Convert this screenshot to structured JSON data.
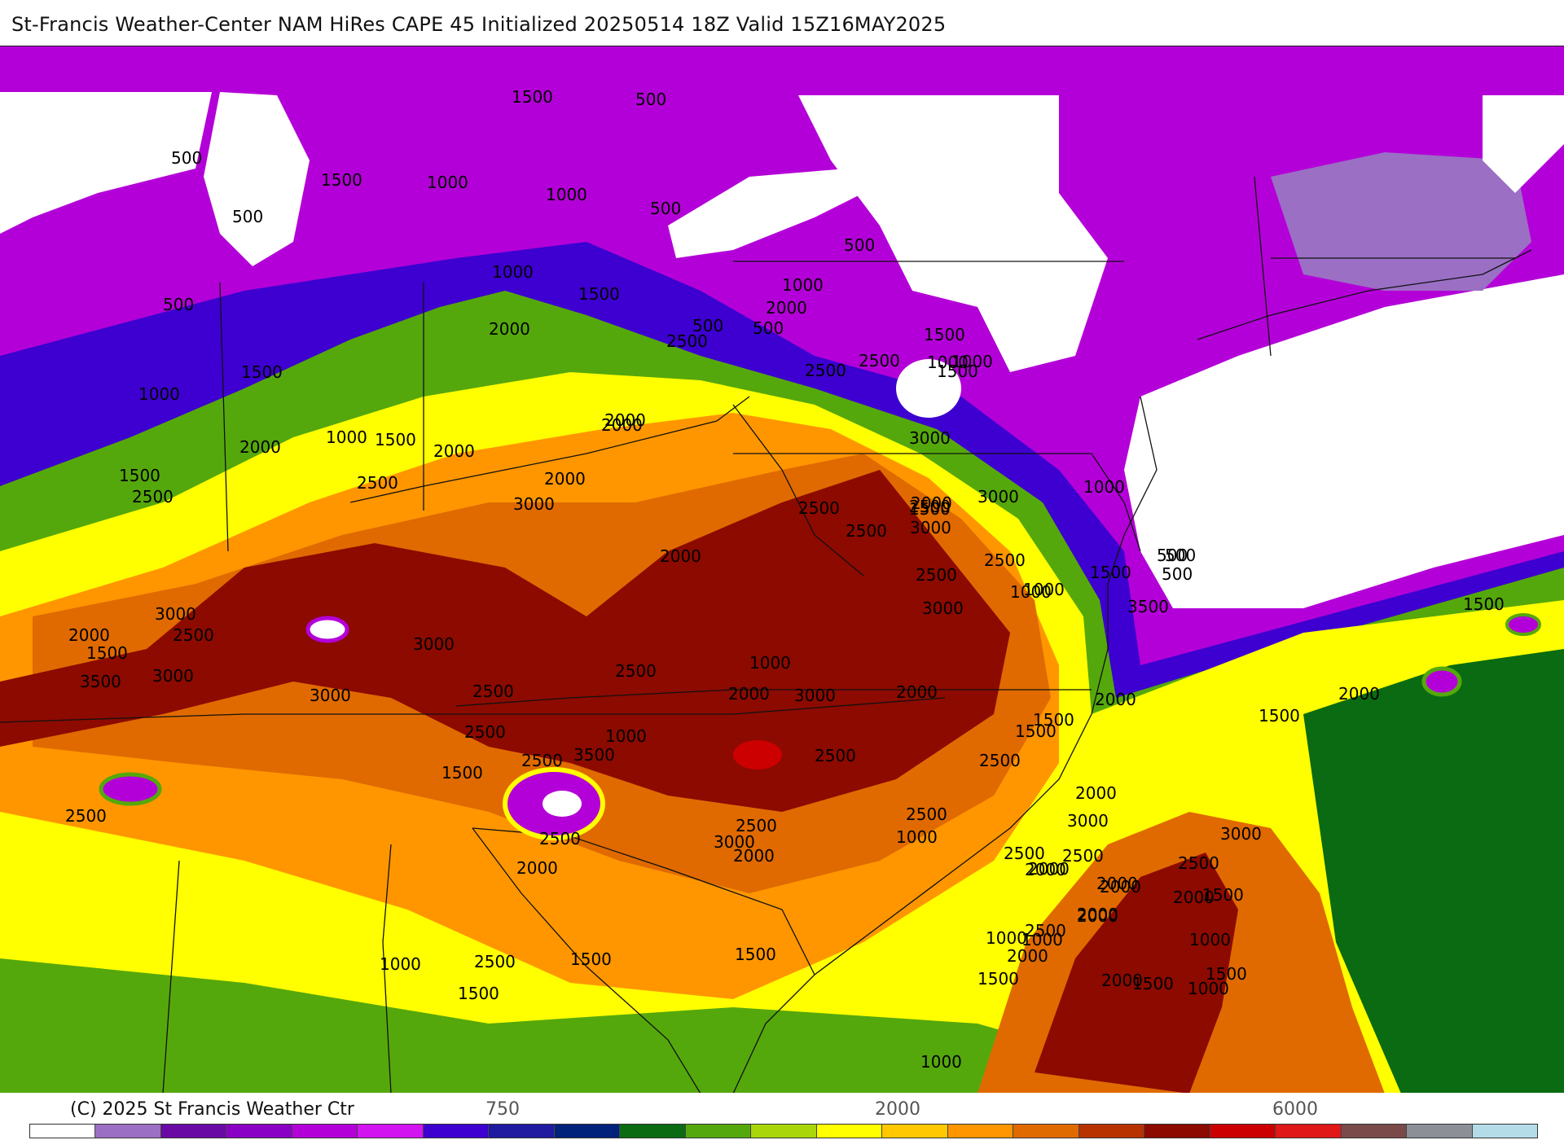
{
  "title": "St-Francis Weather-Center NAM HiRes CAPE  45 Initialized 20250514 18Z Valid 15Z16MAY2025",
  "copyright": "(C) 2025 St Francis Weather Ctr",
  "colorbar": {
    "tick_labels": [
      "750",
      "2000",
      "6000"
    ],
    "colors": [
      "#ffffff",
      "#9b6fc4",
      "#6a0aa5",
      "#8a00c4",
      "#b400d8",
      "#d214f0",
      "#3d00d0",
      "#1f1aa0",
      "#00227a",
      "#0a6b12",
      "#55a80c",
      "#a8d60a",
      "#ffff00",
      "#ffc800",
      "#ff9600",
      "#e06a00",
      "#b83200",
      "#8c0a00",
      "#cc0000",
      "#e01818",
      "#7a4a4a",
      "#8c9096",
      "#b4dce8"
    ]
  },
  "palette": {
    "ocean": "#ffffff",
    "cape_0": "#ffffff",
    "cape_250": "#b400d8",
    "cape_500": "#3d00d0",
    "cape_1000": "#55a80c",
    "cape_1500": "#ffff00",
    "cape_2000": "#ff9600",
    "cape_2500": "#e06a00",
    "cape_3000": "#8c0a00",
    "cape_3500": "#cc0000"
  },
  "contour_labels": [
    "1000",
    "1500",
    "500",
    "500",
    "1000",
    "1500",
    "1000",
    "500",
    "500",
    "500",
    "1000",
    "1000",
    "1500",
    "500",
    "2000",
    "1500",
    "2500",
    "500",
    "2000",
    "500",
    "1000",
    "2500",
    "2500",
    "1000",
    "1500",
    "1500",
    "1000",
    "2000",
    "1000",
    "1500",
    "2000",
    "2000",
    "3000",
    "2000",
    "2500",
    "2000",
    "3000",
    "1000",
    "1500",
    "2500",
    "3000",
    "2500",
    "2000",
    "2500",
    "2500",
    "1500",
    "500",
    "1500",
    "2500",
    "2500",
    "3000",
    "2000",
    "500",
    "1000",
    "500",
    "1500",
    "1000",
    "3000",
    "3500",
    "3000",
    "2500",
    "2000",
    "3000",
    "1000",
    "1500",
    "3500",
    "3000",
    "2500",
    "2500",
    "2000",
    "2500",
    "3000",
    "3000",
    "2000",
    "1500",
    "2000",
    "2000",
    "1500",
    "1500",
    "1000",
    "2500",
    "3500",
    "2500",
    "2500",
    "1500",
    "2000",
    "2500",
    "2500",
    "3000",
    "2500",
    "2500",
    "2000",
    "2000",
    "1000",
    "2000",
    "2500",
    "3000",
    "2000",
    "2000",
    "2500",
    "2000",
    "2500",
    "1500",
    "2000",
    "1000",
    "2000",
    "3000",
    "2500",
    "2000",
    "1500",
    "1500",
    "1000",
    "2000",
    "1000",
    "1500",
    "2500",
    "1000",
    "1500",
    "2000",
    "1000",
    "1500",
    "1500",
    "1000"
  ]
}
